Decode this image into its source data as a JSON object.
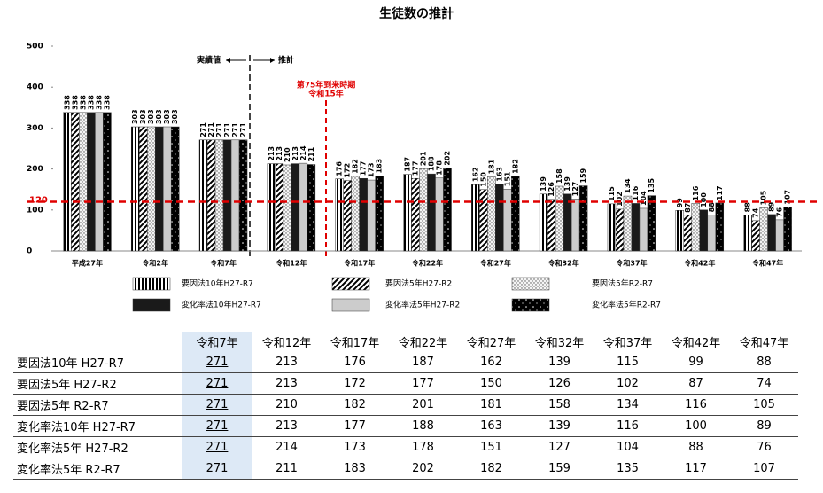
{
  "chart_data": {
    "type": "bar",
    "title": "生徒数の推計",
    "categories": [
      "平成27年",
      "令和2年",
      "令和7年",
      "令和12年",
      "令和17年",
      "令和22年",
      "令和27年",
      "令和32年",
      "令和37年",
      "令和42年",
      "令和47年"
    ],
    "series": [
      {
        "name": "要因法10年H27-R7",
        "color": "#000000",
        "values": [
          338,
          303,
          271,
          213,
          176,
          187,
          162,
          139,
          115,
          99,
          88
        ]
      },
      {
        "name": "要因法5年H27-R2",
        "color": "#000000",
        "values": [
          338,
          303,
          271,
          213,
          172,
          177,
          150,
          126,
          102,
          87,
          74
        ]
      },
      {
        "name": "要因法5年R2-R7",
        "color": "#555555",
        "values": [
          338,
          303,
          271,
          210,
          182,
          201,
          181,
          158,
          134,
          116,
          105
        ]
      },
      {
        "name": "変化率法10年H27-R7",
        "color": "#1a1a1a",
        "values": [
          338,
          303,
          271,
          213,
          177,
          188,
          163,
          139,
          116,
          100,
          89
        ]
      },
      {
        "name": "変化率法5年H27-R2",
        "color": "#cccccc",
        "values": [
          338,
          303,
          271,
          214,
          173,
          178,
          151,
          127,
          104,
          88,
          76
        ]
      },
      {
        "name": "変化率法5年R2-R7",
        "color": "#000000",
        "values": [
          338,
          303,
          271,
          211,
          183,
          202,
          182,
          159,
          135,
          117,
          107
        ]
      }
    ],
    "ylim": [
      0,
      500
    ],
    "yticks": [
      0,
      100,
      200,
      300,
      400,
      500
    ],
    "reference_line": {
      "value": 120,
      "color": "#e00000"
    },
    "annotations": {
      "actual": "実績値",
      "forecast": "推計",
      "milestone": "第75年到来時期",
      "milestone_year": "令和15年"
    }
  },
  "table": {
    "row_labels": [
      "要因法10年 H27-R7",
      "要因法5年 H27-R2",
      "要因法5年 R2-R7",
      "変化率法10年 H27-R7",
      "変化率法5年 H27-R2",
      "変化率法5年 R2-R7"
    ]
  }
}
